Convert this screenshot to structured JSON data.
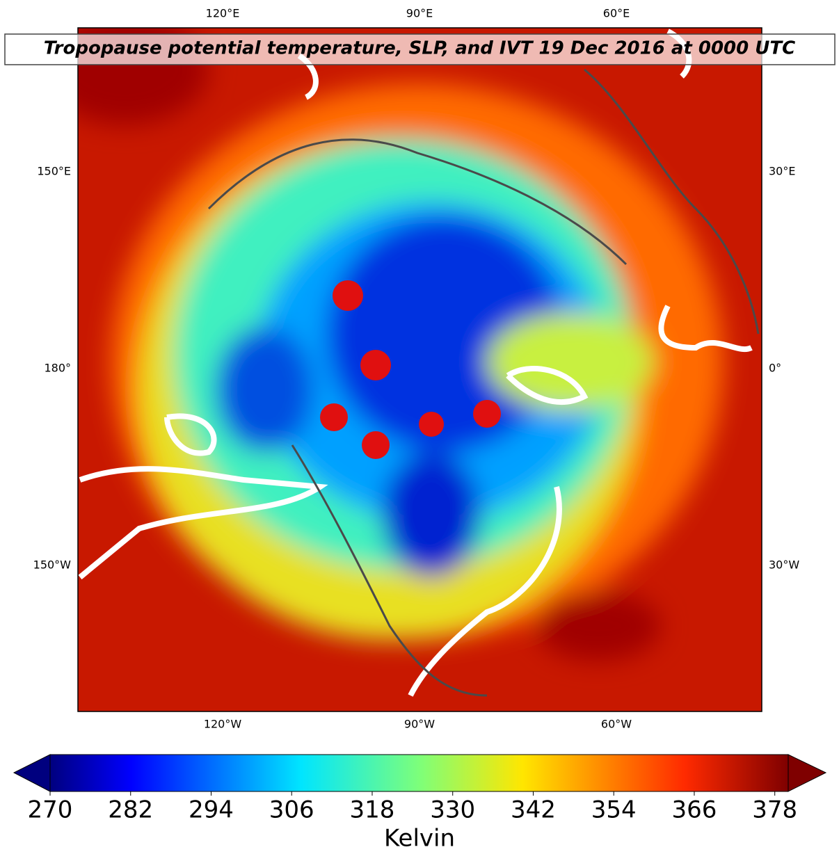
{
  "title": "Tropopause potential temperature, SLP, and IVT 19 Dec 2016 at 0000 UTC",
  "map": {
    "labels": {
      "top": [
        "120°E",
        "90°E",
        "60°E"
      ],
      "bottom": [
        "120°W",
        "90°W",
        "60°W"
      ],
      "left": [
        "150°E",
        "180°",
        "150°W"
      ],
      "right": [
        "30°E",
        "0°",
        "30°W"
      ]
    }
  },
  "colorbar": {
    "label": "Kelvin",
    "lim": [
      270,
      380
    ],
    "ticks": [
      270,
      282,
      294,
      306,
      318,
      330,
      342,
      354,
      366,
      378
    ]
  }
}
